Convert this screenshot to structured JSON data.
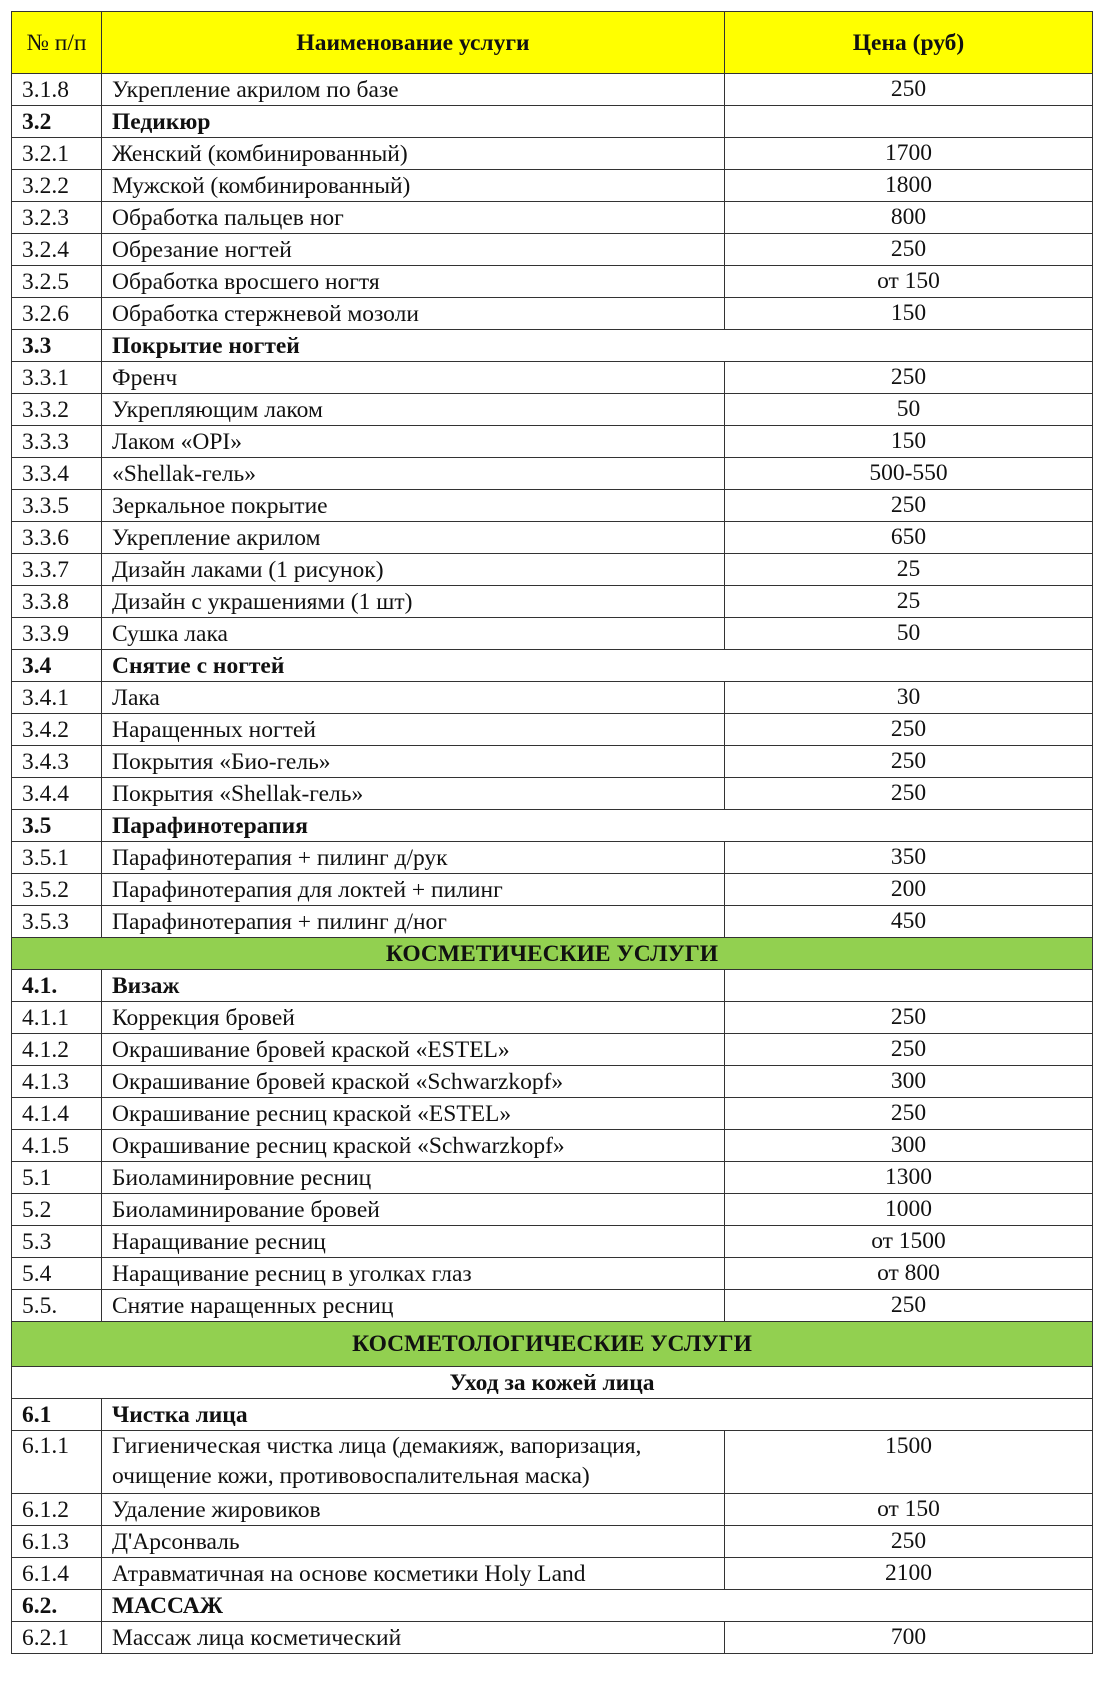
{
  "header": {
    "num": "№ п/п",
    "name": "Наименование услуги",
    "price": "Цена (руб)"
  },
  "colors": {
    "header_bg": "#ffff00",
    "category_bg": "#92d050"
  },
  "rows": [
    {
      "type": "item",
      "num": "3.1.8",
      "name": "Укрепление акрилом по базе",
      "price": "250"
    },
    {
      "type": "section3",
      "num": "3.2",
      "name": "Педикюр"
    },
    {
      "type": "item",
      "num": "3.2.1",
      "name": "Женский (комбинированный)",
      "price": "1700"
    },
    {
      "type": "item",
      "num": "3.2.2",
      "name": "Мужской (комбинированный)",
      "price": "1800"
    },
    {
      "type": "item",
      "num": "3.2.3",
      "name": "Обработка пальцев ног",
      "price": "800"
    },
    {
      "type": "item",
      "num": "3.2.4",
      "name": "Обрезание ногтей",
      "price": "250"
    },
    {
      "type": "item",
      "num": "3.2.5",
      "name": "Обработка вросшего ногтя",
      "price": "от 150"
    },
    {
      "type": "item",
      "num": "3.2.6",
      "name": "Обработка стержневой мозоли",
      "price": "150"
    },
    {
      "type": "section",
      "num": "3.3",
      "name": "Покрытие ногтей"
    },
    {
      "type": "item",
      "num": "3.3.1",
      "name": "Френч",
      "price": "250"
    },
    {
      "type": "item",
      "num": "3.3.2",
      "name": "Укрепляющим лаком",
      "price": "50"
    },
    {
      "type": "item",
      "num": "3.3.3",
      "name": "Лаком «OPI»",
      "price": "150"
    },
    {
      "type": "item",
      "num": "3.3.4",
      "name": "«Shellak-гель»",
      "price": "500-550"
    },
    {
      "type": "item",
      "num": "3.3.5",
      "name": "Зеркальное покрытие",
      "price": "250"
    },
    {
      "type": "item",
      "num": "3.3.6",
      "name": "Укрепление акрилом",
      "price": "650"
    },
    {
      "type": "item",
      "num": "3.3.7",
      "name": "Дизайн лаками (1 рисунок)",
      "price": "25"
    },
    {
      "type": "item",
      "num": "3.3.8",
      "name": "Дизайн с украшениями (1 шт)",
      "price": "25"
    },
    {
      "type": "item",
      "num": "3.3.9",
      "name": "Сушка лака",
      "price": "50"
    },
    {
      "type": "section",
      "num": "3.4",
      "name": "Снятие с ногтей"
    },
    {
      "type": "item",
      "num": "3.4.1",
      "name": "Лака",
      "price": "30"
    },
    {
      "type": "item",
      "num": "3.4.2",
      "name": "Наращенных ногтей",
      "price": "250"
    },
    {
      "type": "item",
      "num": "3.4.3",
      "name": "Покрытия «Био-гель»",
      "price": "250"
    },
    {
      "type": "item",
      "num": "3.4.4",
      "name": "Покрытия «Shellak-гель»",
      "price": "250"
    },
    {
      "type": "section",
      "num": "3.5",
      "name": "Парафинотерапия"
    },
    {
      "type": "item",
      "num": "3.5.1",
      "name": "Парафинотерапия + пилинг д/рук",
      "price": "350"
    },
    {
      "type": "item",
      "num": "3.5.2",
      "name": "Парафинотерапия для локтей + пилинг",
      "price": "200"
    },
    {
      "type": "item",
      "num": "3.5.3",
      "name": "Парафинотерапия + пилинг д/ног",
      "price": "450"
    },
    {
      "type": "category",
      "name": "КОСМЕТИЧЕСКИЕ УСЛУГИ"
    },
    {
      "type": "section3",
      "num": "4.1.",
      "name": "Визаж"
    },
    {
      "type": "item",
      "num": "4.1.1",
      "name": "Коррекция бровей",
      "price": "250"
    },
    {
      "type": "item",
      "num": "4.1.2",
      "name": "Окрашивание бровей краской «ESTEL»",
      "price": "250"
    },
    {
      "type": "item",
      "num": "4.1.3",
      "name": "Окрашивание бровей краской «Schwarzkopf»",
      "price": "300"
    },
    {
      "type": "item",
      "num": "4.1.4",
      "name": "Окрашивание ресниц краской «ESTEL»",
      "price": "250"
    },
    {
      "type": "item",
      "num": "4.1.5",
      "name": "Окрашивание ресниц краской «Schwarzkopf»",
      "price": "300"
    },
    {
      "type": "item",
      "num": "5.1",
      "name": "Биоламинировние ресниц",
      "price": "1300"
    },
    {
      "type": "item",
      "num": "5.2",
      "name": "Биоламинирование бровей",
      "price": "1000"
    },
    {
      "type": "item",
      "num": "5.3",
      "name": "Наращивание ресниц",
      "price": "от 1500"
    },
    {
      "type": "item",
      "num": "5.4",
      "name": "Наращивание ресниц в уголках глаз",
      "price": "от 800"
    },
    {
      "type": "item",
      "num": "5.5.",
      "name": "Снятие наращенных ресниц",
      "price": "250"
    },
    {
      "type": "category_tall",
      "name": "КОСМЕТОЛОГИЧЕСКИЕ УСЛУГИ"
    },
    {
      "type": "subheader",
      "name": "Уход за кожей лица"
    },
    {
      "type": "section",
      "num": "6.1",
      "name": "Чистка лица"
    },
    {
      "type": "multi",
      "num": "6.1.1",
      "name": "Гигиеническая чистка лица (демакияж, вапоризация, очищение кожи, противовоспалительная маска)",
      "price": "1500"
    },
    {
      "type": "item",
      "num": "6.1.2",
      "name": "Удаление жировиков",
      "price": "от 150"
    },
    {
      "type": "item",
      "num": "6.1.3",
      "name": "Д'Арсонваль",
      "price": "250"
    },
    {
      "type": "item",
      "num": "6.1.4",
      "name": "Атравматичная на основе косметики Holy Land",
      "price": "2100"
    },
    {
      "type": "section",
      "num": "6.2.",
      "name": "МАССАЖ"
    },
    {
      "type": "item",
      "num": "6.2.1",
      "name": "Массаж лица косметический",
      "price": "700"
    }
  ]
}
